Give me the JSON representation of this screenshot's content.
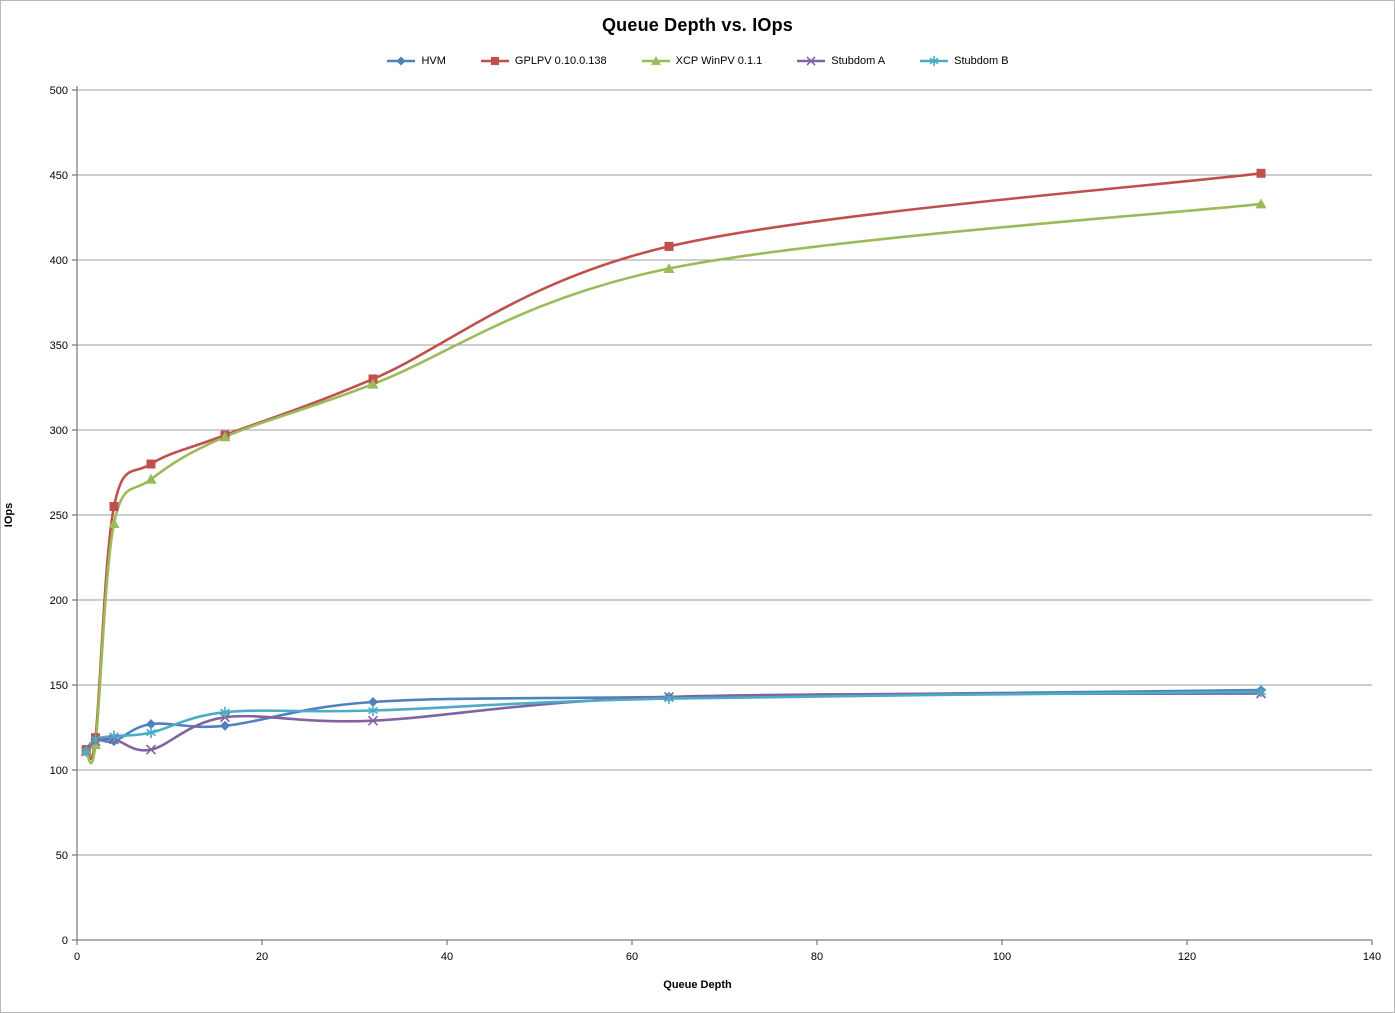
{
  "title": "Queue Depth vs. IOps",
  "chart_data": {
    "type": "line",
    "title": "Queue Depth vs. IOps",
    "xlabel": "Queue Depth",
    "ylabel": "IOps",
    "xlim": [
      0,
      140
    ],
    "ylim": [
      0,
      500
    ],
    "x_ticks": [
      0,
      20,
      40,
      60,
      80,
      100,
      120,
      140
    ],
    "y_ticks": [
      0,
      50,
      100,
      150,
      200,
      250,
      300,
      350,
      400,
      450,
      500
    ],
    "grid": "horizontal",
    "legend_position": "top",
    "smooth_lines": true,
    "x": [
      1,
      2,
      4,
      8,
      16,
      32,
      64,
      128
    ],
    "series": [
      {
        "name": "HVM",
        "color": "#4F81BD",
        "marker": "diamond",
        "values": [
          112,
          118,
          117,
          127,
          126,
          140,
          143,
          147
        ]
      },
      {
        "name": "GPLPV 0.10.0.138",
        "color": "#C0504D",
        "marker": "square",
        "values": [
          112,
          119,
          255,
          280,
          297,
          330,
          408,
          451
        ]
      },
      {
        "name": "XCP WinPV 0.1.1",
        "color": "#9BBB59",
        "marker": "triangle",
        "values": [
          111,
          115,
          245,
          271,
          296,
          327,
          395,
          433
        ]
      },
      {
        "name": "Stubdom A",
        "color": "#8064A2",
        "marker": "x",
        "values": [
          111,
          117,
          118,
          112,
          131,
          129,
          143,
          145
        ]
      },
      {
        "name": "Stubdom B",
        "color": "#4BACC6",
        "marker": "asterisk",
        "values": [
          111,
          118,
          120,
          122,
          134,
          135,
          142,
          146
        ]
      }
    ],
    "colors": {
      "gridline": "#9c9c9c",
      "axis": "#7f7f7f",
      "text": "#000000",
      "background": "#ffffff"
    }
  }
}
